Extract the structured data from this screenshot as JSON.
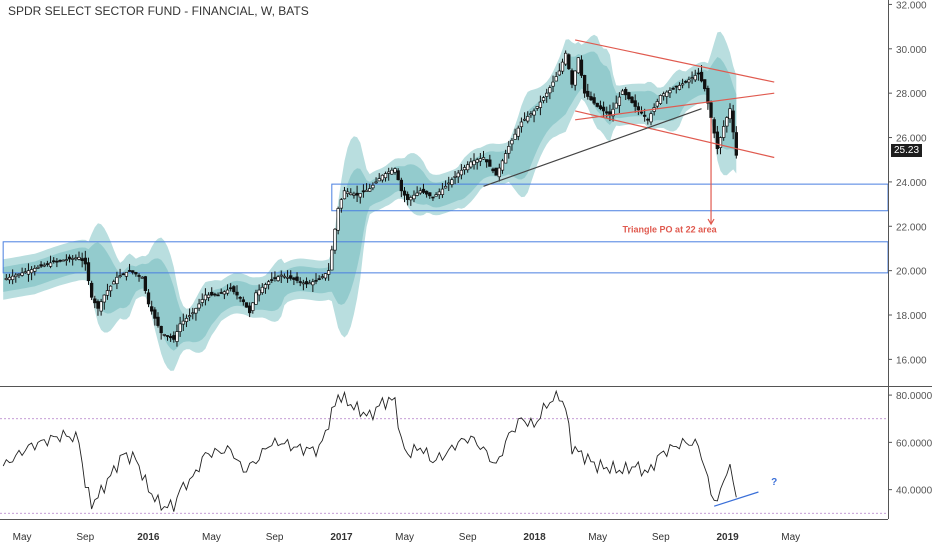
{
  "chart_data": {
    "type": "candlestick",
    "title": "SPDR SELECT SECTOR FUND - FINANCIAL, W, BATS",
    "x_labels": [
      "May",
      "Sep",
      "2016",
      "May",
      "Sep",
      "2017",
      "May",
      "Sep",
      "2018",
      "May",
      "Sep",
      "2019",
      "May"
    ],
    "price_axis": {
      "range": [
        14.8,
        32.2
      ],
      "ticks": [
        "16.000",
        "18.000",
        "20.000",
        "22.000",
        "24.000",
        "26.000",
        "28.000",
        "30.000",
        "32.000"
      ]
    },
    "last_price_label": "25.23",
    "price_series": [
      {
        "t": 0,
        "p": 19.6
      },
      {
        "t": 4,
        "p": 19.8
      },
      {
        "t": 8,
        "p": 20.0
      },
      {
        "t": 12,
        "p": 20.2
      },
      {
        "t": 16,
        "p": 20.4
      },
      {
        "t": 20,
        "p": 20.5
      },
      {
        "t": 24,
        "p": 20.6
      },
      {
        "t": 26,
        "p": 20.3
      },
      {
        "t": 28,
        "p": 18.8
      },
      {
        "t": 30,
        "p": 18.3
      },
      {
        "t": 32,
        "p": 18.9
      },
      {
        "t": 36,
        "p": 19.7
      },
      {
        "t": 40,
        "p": 20.0
      },
      {
        "t": 44,
        "p": 19.7
      },
      {
        "t": 46,
        "p": 18.5
      },
      {
        "t": 50,
        "p": 17.2
      },
      {
        "t": 54,
        "p": 16.9
      },
      {
        "t": 56,
        "p": 17.6
      },
      {
        "t": 60,
        "p": 18.1
      },
      {
        "t": 64,
        "p": 18.9
      },
      {
        "t": 68,
        "p": 18.9
      },
      {
        "t": 72,
        "p": 19.2
      },
      {
        "t": 76,
        "p": 18.6
      },
      {
        "t": 78,
        "p": 18.1
      },
      {
        "t": 80,
        "p": 19.0
      },
      {
        "t": 84,
        "p": 19.5
      },
      {
        "t": 88,
        "p": 19.8
      },
      {
        "t": 92,
        "p": 19.6
      },
      {
        "t": 96,
        "p": 19.4
      },
      {
        "t": 100,
        "p": 19.6
      },
      {
        "t": 103,
        "p": 20.0
      },
      {
        "t": 106,
        "p": 22.8
      },
      {
        "t": 108,
        "p": 23.6
      },
      {
        "t": 112,
        "p": 23.4
      },
      {
        "t": 116,
        "p": 23.7
      },
      {
        "t": 120,
        "p": 24.3
      },
      {
        "t": 124,
        "p": 24.6
      },
      {
        "t": 126,
        "p": 23.6
      },
      {
        "t": 128,
        "p": 23.2
      },
      {
        "t": 132,
        "p": 23.6
      },
      {
        "t": 136,
        "p": 23.3
      },
      {
        "t": 140,
        "p": 23.8
      },
      {
        "t": 144,
        "p": 24.4
      },
      {
        "t": 148,
        "p": 24.9
      },
      {
        "t": 152,
        "p": 25.1
      },
      {
        "t": 156,
        "p": 24.3
      },
      {
        "t": 160,
        "p": 25.6
      },
      {
        "t": 164,
        "p": 26.7
      },
      {
        "t": 168,
        "p": 27.2
      },
      {
        "t": 172,
        "p": 28.0
      },
      {
        "t": 176,
        "p": 29.0
      },
      {
        "t": 178,
        "p": 29.8
      },
      {
        "t": 180,
        "p": 28.4
      },
      {
        "t": 182,
        "p": 29.6
      },
      {
        "t": 184,
        "p": 28.0
      },
      {
        "t": 188,
        "p": 27.4
      },
      {
        "t": 192,
        "p": 27.0
      },
      {
        "t": 196,
        "p": 28.1
      },
      {
        "t": 200,
        "p": 27.4
      },
      {
        "t": 204,
        "p": 26.8
      },
      {
        "t": 208,
        "p": 27.9
      },
      {
        "t": 212,
        "p": 28.2
      },
      {
        "t": 216,
        "p": 28.5
      },
      {
        "t": 220,
        "p": 28.9
      },
      {
        "t": 222,
        "p": 28.2
      },
      {
        "t": 224,
        "p": 26.9
      },
      {
        "t": 226,
        "p": 25.5
      },
      {
        "t": 228,
        "p": 26.5
      },
      {
        "t": 230,
        "p": 27.3
      },
      {
        "t": 232,
        "p": 25.2
      }
    ],
    "overlay": {
      "boxes": [
        {
          "top": 23.9,
          "bottom": 22.7,
          "t_start": 104,
          "t_end": 280
        },
        {
          "top": 21.3,
          "bottom": 19.9,
          "t_start": 0,
          "t_end": 280
        }
      ],
      "trendlines": [
        {
          "color": "#e05a4f",
          "from": {
            "t": 181,
            "p": 30.4
          },
          "to": {
            "t": 244,
            "p": 28.5
          }
        },
        {
          "color": "#e05a4f",
          "from": {
            "t": 181,
            "p": 27.2
          },
          "to": {
            "t": 244,
            "p": 25.1
          }
        },
        {
          "color": "#e05a4f",
          "from": {
            "t": 181,
            "p": 26.8
          },
          "to": {
            "t": 244,
            "p": 28.0
          }
        },
        {
          "color": "#444444",
          "from": {
            "t": 152,
            "p": 23.8
          },
          "to": {
            "t": 221,
            "p": 27.3
          }
        }
      ],
      "arrow": {
        "t": 224,
        "p_from": 26.9,
        "p_to": 22.1,
        "color": "#e05a4f"
      },
      "annotation": {
        "text": "Triangle PO at 22 area",
        "t": 196,
        "p": 21.9,
        "color": "#e05a4f"
      }
    },
    "rsi": {
      "range": [
        28,
        83
      ],
      "ticks": [
        "40.0000",
        "60.0000",
        "80.0000"
      ],
      "levels": [
        70,
        30
      ],
      "series": [
        {
          "t": 0,
          "v": 50
        },
        {
          "t": 4,
          "v": 54
        },
        {
          "t": 8,
          "v": 58
        },
        {
          "t": 12,
          "v": 60
        },
        {
          "t": 16,
          "v": 62
        },
        {
          "t": 20,
          "v": 63
        },
        {
          "t": 24,
          "v": 61
        },
        {
          "t": 26,
          "v": 42
        },
        {
          "t": 28,
          "v": 34
        },
        {
          "t": 30,
          "v": 37
        },
        {
          "t": 34,
          "v": 46
        },
        {
          "t": 38,
          "v": 55
        },
        {
          "t": 42,
          "v": 53
        },
        {
          "t": 46,
          "v": 40
        },
        {
          "t": 50,
          "v": 33
        },
        {
          "t": 54,
          "v": 33
        },
        {
          "t": 56,
          "v": 40
        },
        {
          "t": 60,
          "v": 45
        },
        {
          "t": 64,
          "v": 55
        },
        {
          "t": 68,
          "v": 56
        },
        {
          "t": 72,
          "v": 57
        },
        {
          "t": 76,
          "v": 48
        },
        {
          "t": 80,
          "v": 52
        },
        {
          "t": 84,
          "v": 59
        },
        {
          "t": 88,
          "v": 60
        },
        {
          "t": 92,
          "v": 58
        },
        {
          "t": 96,
          "v": 57
        },
        {
          "t": 100,
          "v": 57
        },
        {
          "t": 104,
          "v": 72
        },
        {
          "t": 106,
          "v": 80
        },
        {
          "t": 108,
          "v": 78
        },
        {
          "t": 112,
          "v": 74
        },
        {
          "t": 116,
          "v": 71
        },
        {
          "t": 120,
          "v": 77
        },
        {
          "t": 124,
          "v": 78
        },
        {
          "t": 126,
          "v": 60
        },
        {
          "t": 128,
          "v": 55
        },
        {
          "t": 132,
          "v": 58
        },
        {
          "t": 136,
          "v": 52
        },
        {
          "t": 140,
          "v": 55
        },
        {
          "t": 144,
          "v": 60
        },
        {
          "t": 148,
          "v": 62
        },
        {
          "t": 152,
          "v": 57
        },
        {
          "t": 156,
          "v": 50
        },
        {
          "t": 160,
          "v": 63
        },
        {
          "t": 164,
          "v": 70
        },
        {
          "t": 168,
          "v": 67
        },
        {
          "t": 172,
          "v": 76
        },
        {
          "t": 176,
          "v": 80
        },
        {
          "t": 178,
          "v": 74
        },
        {
          "t": 180,
          "v": 58
        },
        {
          "t": 184,
          "v": 54
        },
        {
          "t": 188,
          "v": 50
        },
        {
          "t": 192,
          "v": 49
        },
        {
          "t": 196,
          "v": 48
        },
        {
          "t": 200,
          "v": 50
        },
        {
          "t": 204,
          "v": 47
        },
        {
          "t": 208,
          "v": 55
        },
        {
          "t": 212,
          "v": 58
        },
        {
          "t": 216,
          "v": 60
        },
        {
          "t": 220,
          "v": 59
        },
        {
          "t": 222,
          "v": 49
        },
        {
          "t": 224,
          "v": 39
        },
        {
          "t": 226,
          "v": 34
        },
        {
          "t": 228,
          "v": 45
        },
        {
          "t": 230,
          "v": 49
        },
        {
          "t": 232,
          "v": 38
        }
      ],
      "divergence_line": {
        "from": {
          "t": 225,
          "v": 33
        },
        "to": {
          "t": 239,
          "v": 39
        },
        "color": "#3a6fd8"
      },
      "question_mark": {
        "text": "?",
        "t": 243,
        "v": 42,
        "color": "#3a6fd8"
      }
    },
    "colors": {
      "band_outer": "#b9dedf",
      "band_inner": "#8cc8ca",
      "up_candle": "#ffffff",
      "down_candle": "#111111",
      "box_stroke": "#4a7fe0",
      "level_line": "#b07ac8",
      "axis_text": "#555555"
    }
  }
}
